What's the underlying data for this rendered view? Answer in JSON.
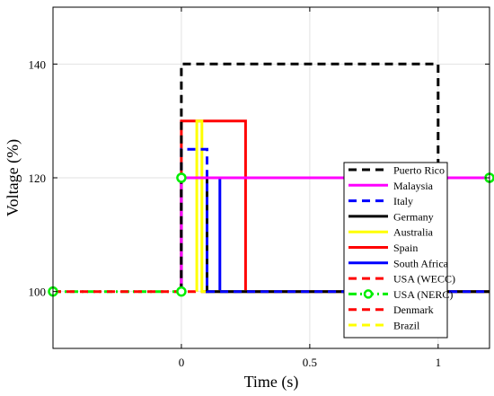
{
  "chart_data": {
    "type": "line",
    "title": "",
    "xlabel": "Time (s)",
    "ylabel": "Voltage (%)",
    "xlim": [
      -0.5,
      1.2
    ],
    "ylim": [
      90,
      150
    ],
    "xticks": [
      0,
      0.5,
      1
    ],
    "xtick_labels": [
      "0",
      "0.5",
      "1"
    ],
    "yticks": [
      100,
      120,
      140
    ],
    "ytick_labels": [
      "100",
      "120",
      "140"
    ],
    "grid": true,
    "legend_position": "lower-right",
    "series": [
      {
        "name": "Puerto Rico",
        "color": "#000000",
        "dash": "dashed",
        "x": [
          0,
          0,
          1,
          1
        ],
        "y": [
          100,
          140,
          140,
          120
        ]
      },
      {
        "name": "Malaysia",
        "color": "#ff00ff",
        "dash": "solid",
        "x": [
          0,
          0,
          1.2
        ],
        "y": [
          100,
          120,
          120
        ]
      },
      {
        "name": "Italy",
        "color": "#0000ff",
        "dash": "dashed",
        "x": [
          0,
          0,
          0.1,
          0.1,
          1.2
        ],
        "y": [
          100,
          125,
          125,
          100,
          100
        ]
      },
      {
        "name": "Germany",
        "color": "#000000",
        "dash": "solid",
        "x": [
          0,
          0,
          0.1,
          0.1,
          1.2
        ],
        "y": [
          100,
          120,
          120,
          100,
          100
        ]
      },
      {
        "name": "Australia",
        "color": "#ffff00",
        "dash": "solid",
        "x": [
          0.06,
          0.06,
          0.08,
          0.08,
          1.2
        ],
        "y": [
          100,
          130,
          130,
          100,
          100
        ]
      },
      {
        "name": "Spain",
        "color": "#ff0000",
        "dash": "solid",
        "x": [
          0,
          0,
          0.25,
          0.25,
          1.2
        ],
        "y": [
          100,
          130,
          130,
          100,
          100
        ]
      },
      {
        "name": "South Africa",
        "color": "#0000ff",
        "dash": "solid",
        "x": [
          0.15,
          0.15,
          0.15,
          0.15,
          1.2
        ],
        "y": [
          100,
          120,
          120,
          100,
          100
        ]
      },
      {
        "name": "USA (WECC)",
        "color": "#ff0000",
        "dash": "dashed",
        "x": [
          -0.5,
          0,
          1.2
        ],
        "y": [
          100,
          100,
          100
        ]
      },
      {
        "name": "USA (NERC)",
        "color": "#00ee00",
        "dash": "dashdot",
        "markers": true,
        "x": [
          -0.5,
          0,
          0,
          1.2
        ],
        "y": [
          100,
          100,
          120,
          120
        ]
      },
      {
        "name": "Denmark",
        "color": "#ff0000",
        "dash": "dashed",
        "x": [
          0,
          0,
          0.1
        ],
        "y": [
          100,
          120,
          120
        ]
      },
      {
        "name": "Brazil",
        "color": "#ffff00",
        "dash": "dashed",
        "x": [
          0,
          0,
          1.2
        ],
        "y": [
          100,
          120,
          120
        ]
      }
    ]
  }
}
